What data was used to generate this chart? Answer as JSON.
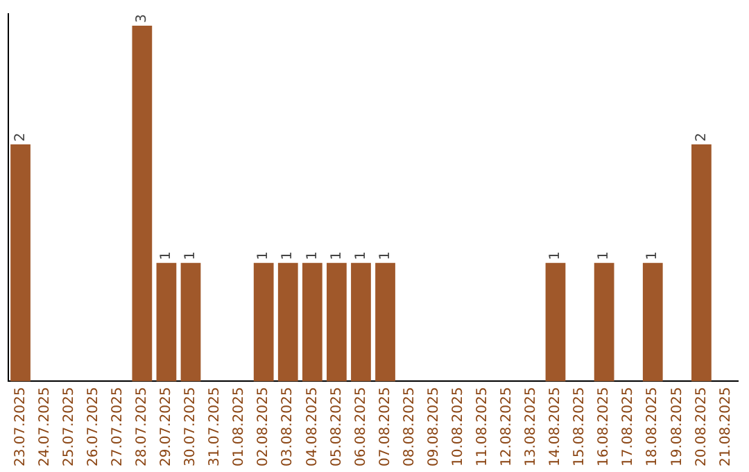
{
  "chart_data": {
    "type": "bar",
    "categories": [
      "23.07.2025",
      "24.07.2025",
      "25.07.2025",
      "26.07.2025",
      "27.07.2025",
      "28.07.2025",
      "29.07.2025",
      "30.07.2025",
      "31.07.2025",
      "01.08.2025",
      "02.08.2025",
      "03.08.2025",
      "04.08.2025",
      "05.08.2025",
      "06.08.2025",
      "07.08.2025",
      "08.08.2025",
      "09.08.2025",
      "10.08.2025",
      "11.08.2025",
      "12.08.2025",
      "13.08.2025",
      "14.08.2025",
      "15.08.2025",
      "16.08.2025",
      "17.08.2025",
      "18.08.2025",
      "19.08.2025",
      "20.08.2025",
      "21.08.2025"
    ],
    "values": [
      2,
      0,
      0,
      0,
      0,
      3,
      1,
      1,
      0,
      0,
      1,
      1,
      1,
      1,
      1,
      1,
      0,
      0,
      0,
      0,
      0,
      0,
      1,
      0,
      1,
      0,
      1,
      0,
      2,
      0
    ],
    "value_labels": [
      "2",
      null,
      null,
      null,
      null,
      "3",
      "1",
      "1",
      null,
      null,
      "1",
      "1",
      "1",
      "1",
      "1",
      "1",
      null,
      null,
      null,
      null,
      null,
      null,
      "1",
      null,
      "1",
      null,
      "1",
      null,
      "2",
      null
    ],
    "color": "#a0582a",
    "ylim": [
      0,
      3.1
    ],
    "grid": false,
    "legend": false,
    "tick_labels": "x"
  }
}
